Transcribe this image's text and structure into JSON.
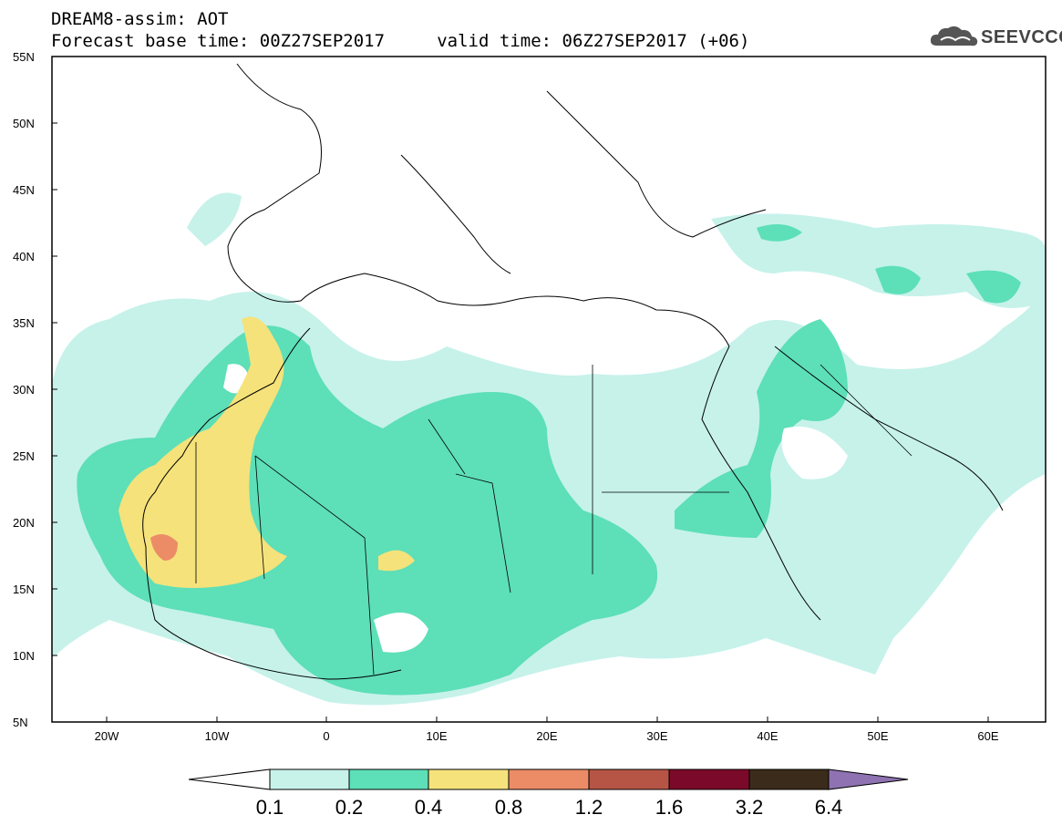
{
  "title_line1": "DREAM8-assim: AOT",
  "title_line2": "Forecast base time: 00Z27SEP2017     valid time: 06Z27SEP2017 (+06)",
  "logo_text": "SEEVCCC",
  "lat_labels": [
    "55N",
    "50N",
    "45N",
    "40N",
    "35N",
    "30N",
    "25N",
    "20N",
    "15N",
    "10N",
    "5N"
  ],
  "lon_labels": [
    "20W",
    "10W",
    "0",
    "10E",
    "20E",
    "30E",
    "40E",
    "50E",
    "60E"
  ],
  "colorbar": {
    "labels": [
      "0.1",
      "0.2",
      "0.4",
      "0.8",
      "1.2",
      "1.6",
      "3.2",
      "6.4"
    ],
    "colors": [
      "#c6f2ea",
      "#5ddfb8",
      "#f5e27b",
      "#eb8c67",
      "#b65545",
      "#7b0a2a",
      "#3b2b1a",
      "#8e72b1"
    ]
  },
  "colors": {
    "border": "#000000",
    "map_frame": "#000000"
  }
}
